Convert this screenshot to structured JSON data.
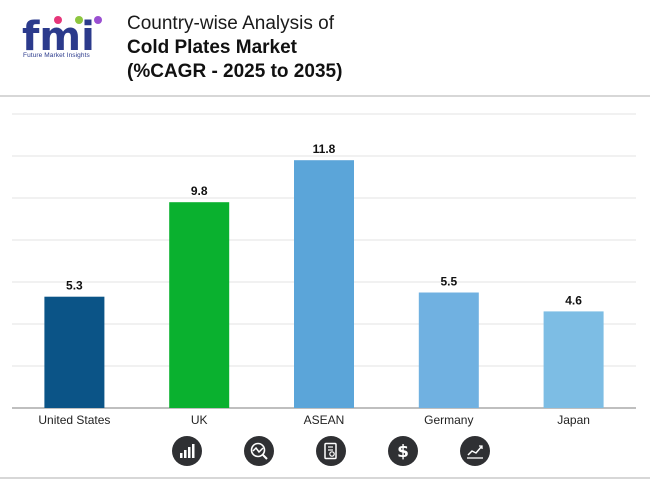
{
  "header": {
    "title_line1": "Country-wise Analysis of",
    "title_line2": "Cold Plates Market",
    "title_line3": "(%CAGR - 2025 to 2035)",
    "logo_text": "fmi",
    "logo_subtitle": "Future Market Insights"
  },
  "chart_data": {
    "type": "bar",
    "categories": [
      "United States",
      "UK",
      "ASEAN",
      "Germany",
      "Japan"
    ],
    "values": [
      5.3,
      9.8,
      11.8,
      5.5,
      4.6
    ],
    "colors": [
      "#0b5487",
      "#0ab12f",
      "#5ba5d9",
      "#70b1e1",
      "#7dbde4"
    ],
    "title": "",
    "xlabel": "",
    "ylabel": "",
    "ylim": [
      0,
      14
    ],
    "grid": true,
    "legend": "none"
  },
  "footer": {
    "icons": [
      "bar-chart-growth-icon",
      "market-analysis-icon",
      "report-document-icon",
      "dollar-icon",
      "line-chart-icon"
    ]
  }
}
